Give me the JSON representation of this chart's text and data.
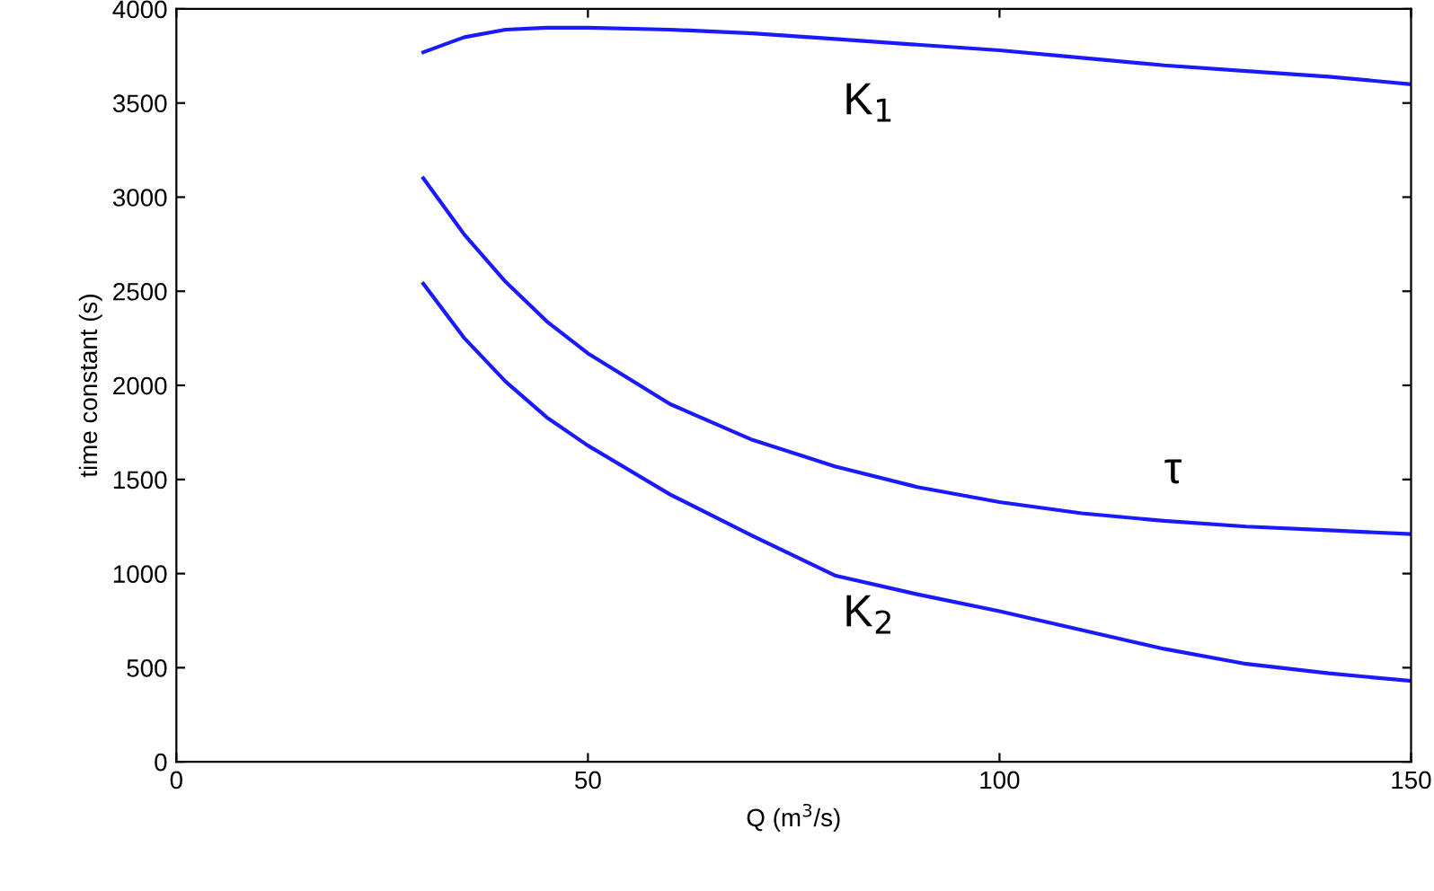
{
  "chart_data": {
    "type": "line",
    "xlabel": "Q (m$^{3}$/s)",
    "ylabel": "time constant (s)",
    "xlim": [
      0,
      150
    ],
    "ylim": [
      0,
      4000
    ],
    "xticks": [
      0,
      50,
      100,
      150
    ],
    "yticks": [
      0,
      500,
      1000,
      1500,
      2000,
      2500,
      3000,
      3500,
      4000
    ],
    "grid": false,
    "legend": false,
    "marker": "none",
    "line_style": "solid",
    "x": [
      30,
      35,
      40,
      45,
      50,
      60,
      70,
      80,
      90,
      100,
      110,
      120,
      130,
      140,
      150
    ],
    "series": [
      {
        "color": "#1a1aff",
        "values": [
          3770,
          3850,
          3890,
          3900,
          3900,
          3890,
          3870,
          3840,
          3810,
          3780,
          3740,
          3700,
          3670,
          3640,
          3600
        ]
      },
      {
        "color": "#1a1aff",
        "values": [
          3100,
          2800,
          2550,
          2340,
          2170,
          1900,
          1710,
          1570,
          1460,
          1380,
          1320,
          1280,
          1250,
          1230,
          1210
        ]
      },
      {
        "color": "#1a1aff",
        "values": [
          2540,
          2250,
          2020,
          1830,
          1680,
          1420,
          1200,
          990,
          890,
          800,
          700,
          600,
          520,
          470,
          430
        ]
      }
    ],
    "annotations": [
      "K$_{1}$",
      "τ",
      "K$_{2}$"
    ]
  }
}
